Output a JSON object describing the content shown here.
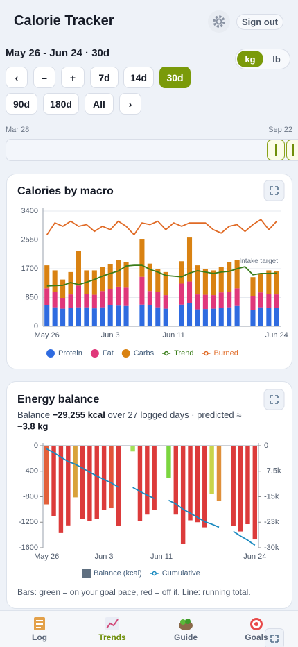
{
  "header": {
    "title": "Calorie Tracker",
    "sign_out": "Sign out"
  },
  "controls": {
    "range_label": "May 26 - Jun 24 · 30d",
    "units": [
      "kg",
      "lb"
    ],
    "active_unit": 0,
    "buttons": [
      "‹",
      "–",
      "+",
      "7d",
      "14d",
      "30d",
      "90d",
      "180d",
      "All",
      "›"
    ],
    "active_button": 5,
    "slider_start": "Mar 28",
    "slider_end": "Sep 22"
  },
  "chart_data": [
    {
      "type": "bar",
      "title": "Calories by macro",
      "categories": [
        "May 26",
        null,
        null,
        null,
        null,
        null,
        null,
        null,
        "Jun 3",
        null,
        null,
        null,
        null,
        null,
        null,
        null,
        "Jun 11",
        null,
        null,
        null,
        null,
        null,
        null,
        null,
        null,
        null,
        null,
        null,
        null,
        "Jun 24"
      ],
      "series": [
        {
          "name": "Protein",
          "color": "#2f6be0",
          "style": "stack",
          "values": [
            620,
            560,
            520,
            540,
            560,
            560,
            530,
            560,
            620,
            610,
            600,
            null,
            640,
            620,
            560,
            520,
            null,
            640,
            680,
            500,
            510,
            520,
            540,
            560,
            600,
            null,
            480,
            560,
            540,
            540
          ]
        },
        {
          "name": "Fat",
          "color": "#e0377a",
          "style": "stack",
          "values": [
            500,
            450,
            320,
            400,
            640,
            400,
            400,
            480,
            480,
            560,
            540,
            null,
            820,
            420,
            460,
            400,
            null,
            620,
            640,
            440,
            420,
            400,
            460,
            460,
            520,
            null,
            420,
            440,
            420,
            400
          ]
        },
        {
          "name": "Carbs",
          "color": "#d98212",
          "style": "stack",
          "values": [
            680,
            640,
            540,
            660,
            1030,
            690,
            720,
            710,
            730,
            780,
            760,
            null,
            1120,
            810,
            680,
            680,
            null,
            660,
            1300,
            860,
            770,
            730,
            750,
            880,
            830,
            null,
            550,
            560,
            690,
            690
          ]
        },
        {
          "name": "Trend",
          "color": "#3a7d1a",
          "style": "line",
          "values": [
            1190,
            1200,
            1210,
            1290,
            1230,
            1300,
            1380,
            1480,
            1560,
            1630,
            1780,
            1800,
            1800,
            1680,
            1600,
            1500,
            1480,
            1460,
            1570,
            1640,
            1600,
            1560,
            1600,
            1620,
            1700,
            1760,
            1520,
            1560,
            1560,
            1570
          ]
        },
        {
          "name": "Burned",
          "color": "#e06a25",
          "style": "line",
          "values": [
            2700,
            3050,
            2950,
            3100,
            2950,
            3000,
            2800,
            2950,
            2850,
            3100,
            2950,
            2700,
            3050,
            3000,
            3100,
            2850,
            3050,
            2950,
            3050,
            3050,
            3050,
            2850,
            2750,
            2950,
            3000,
            2800,
            3000,
            3150,
            2850,
            3100
          ]
        }
      ],
      "reference_line": {
        "value": 2100,
        "label": "Intake target"
      },
      "ylim": [
        0,
        3400
      ],
      "yticks": [
        0,
        850,
        1700,
        2550,
        3400
      ],
      "grid": true
    },
    {
      "type": "bar",
      "title": "Energy balance",
      "subtitle": [
        "Balance",
        "−29,255 kcal",
        "over 27 logged days · predicted ≈",
        "−3.8 kg"
      ],
      "categories": [
        "May 26",
        null,
        null,
        null,
        null,
        null,
        null,
        null,
        "Jun 3",
        null,
        null,
        null,
        null,
        null,
        null,
        null,
        "Jun 11",
        null,
        null,
        null,
        null,
        null,
        null,
        null,
        null,
        null,
        null,
        null,
        null,
        "Jun 24"
      ],
      "series": [
        {
          "name": "Balance (kcal)",
          "color": "#5f6f80",
          "colors": [
            "#e2603a",
            "#dc3b3b",
            "#dc3b3b",
            "#dc3b3b",
            "#d9a23a",
            "#dc3b3b",
            "#dc3b3b",
            "#dc3b3b",
            "#dc3b3b",
            "#e2543a",
            "#dc3b3b",
            null,
            "#a3e05a",
            "#dc3b3b",
            "#dc3b3b",
            "#dc3b3b",
            null,
            "#7bd63f",
            "#dc3b3b",
            "#dc3b3b",
            "#dc3b3b",
            "#dc3b3b",
            "#dc3b3b",
            "#c9d44a",
            "#e0903b",
            null,
            "#dc3b3b",
            "#dc3b3b",
            "#dc3b3b",
            "#dc3b3b"
          ],
          "values": [
            -920,
            -1100,
            -1370,
            -1250,
            -810,
            -1150,
            -1180,
            -1150,
            -1010,
            -980,
            -1260,
            null,
            -90,
            -1180,
            -1080,
            -1010,
            null,
            -510,
            -1080,
            -1540,
            -1170,
            -1200,
            -1280,
            -760,
            -870,
            null,
            -1260,
            -1345,
            -1230,
            -1470
          ]
        },
        {
          "name": "Cumulative",
          "color": "#1a8ac0",
          "axis": "y2",
          "values": [
            -920,
            -2020,
            -3390,
            -4640,
            -5450,
            -6600,
            -7780,
            -8930,
            -9940,
            -10920,
            -12180,
            null,
            -12270,
            -13450,
            -14530,
            -15540,
            null,
            -16050,
            -17130,
            -18670,
            -19840,
            -21040,
            -22320,
            -23080,
            -23950,
            null,
            -25210,
            -26555,
            -27785,
            -29255
          ]
        }
      ],
      "ylim": [
        -1600,
        0
      ],
      "yticks": [
        0,
        -400,
        -800,
        -1200,
        -1600
      ],
      "y2lim": [
        -30000,
        0
      ],
      "y2ticks": [
        0,
        {
          "value": -7500,
          "label": "-7.5k"
        },
        {
          "value": -15000,
          "label": "-15k"
        },
        {
          "value": -22500,
          "label": "-23k"
        },
        {
          "value": -30000,
          "label": "-30k"
        }
      ],
      "grid": false,
      "note": "Bars: green = on your goal pace, red = off it. Line: running total."
    }
  ],
  "nav": {
    "items": [
      "Log",
      "Trends",
      "Guide",
      "Goals"
    ],
    "active": 1
  }
}
